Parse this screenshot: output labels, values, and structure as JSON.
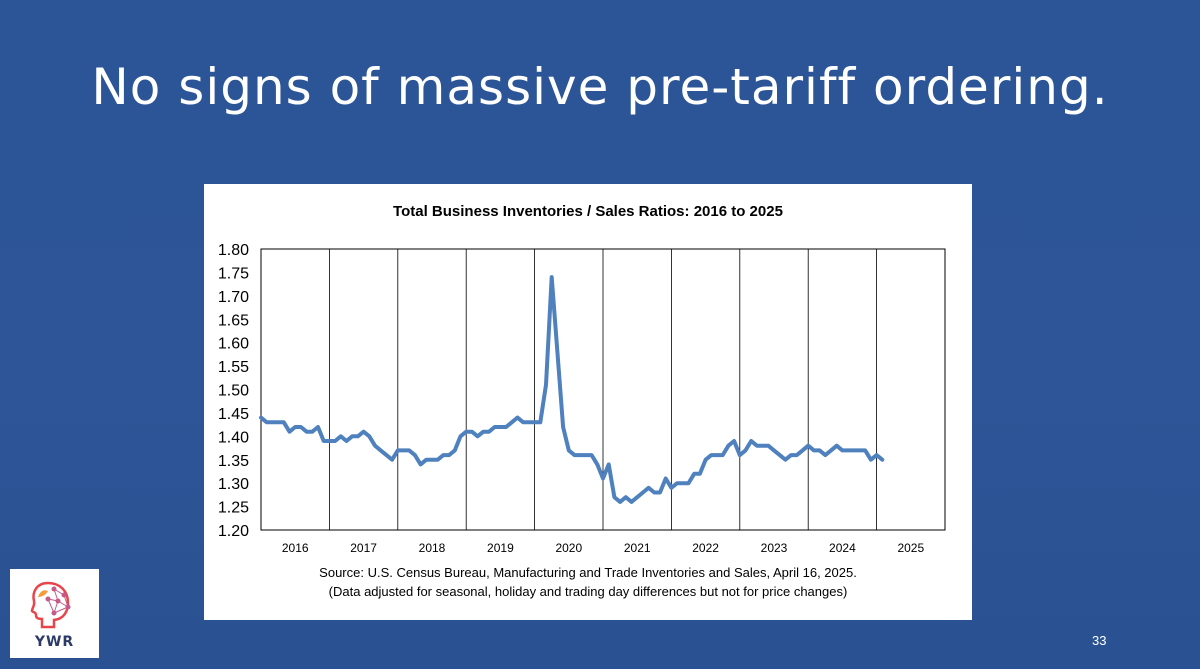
{
  "slide": {
    "title": "No signs of massive pre-tariff ordering.",
    "page_number": "33",
    "logo_text": "YWR"
  },
  "colors": {
    "background": "#2c5597",
    "series_line": "#4e81bd",
    "logo_accent": "#e8454a"
  },
  "chart_data": {
    "type": "line",
    "title": "Total Business Inventories / Sales Ratios: 2016 to 2025",
    "source_line1": "Source: U.S. Census Bureau, Manufacturing and Trade Inventories and Sales, April 16, 2025.",
    "source_line2": "(Data adjusted for seasonal, holiday and trading day differences but not for price changes)",
    "xlabel": "",
    "ylabel": "",
    "ylim": [
      1.2,
      1.8
    ],
    "y_ticks": [
      "1.80",
      "1.75",
      "1.70",
      "1.65",
      "1.60",
      "1.55",
      "1.50",
      "1.45",
      "1.40",
      "1.35",
      "1.30",
      "1.25",
      "1.20"
    ],
    "x_tick_labels": [
      "2016",
      "2017",
      "2018",
      "2019",
      "2020",
      "2021",
      "2022",
      "2023",
      "2024",
      "2025"
    ],
    "gridlines": "vertical year separators",
    "legend": "none",
    "series": [
      {
        "start": "2016-01",
        "frequency": "monthly",
        "values": [
          1.44,
          1.43,
          1.43,
          1.43,
          1.43,
          1.41,
          1.42,
          1.42,
          1.41,
          1.41,
          1.42,
          1.39,
          1.39,
          1.39,
          1.4,
          1.39,
          1.4,
          1.4,
          1.41,
          1.4,
          1.38,
          1.37,
          1.36,
          1.35,
          1.37,
          1.37,
          1.37,
          1.36,
          1.34,
          1.35,
          1.35,
          1.35,
          1.36,
          1.36,
          1.37,
          1.4,
          1.41,
          1.41,
          1.4,
          1.41,
          1.41,
          1.42,
          1.42,
          1.42,
          1.43,
          1.44,
          1.43,
          1.43,
          1.43,
          1.43,
          1.51,
          1.74,
          1.58,
          1.42,
          1.37,
          1.36,
          1.36,
          1.36,
          1.36,
          1.34,
          1.31,
          1.34,
          1.27,
          1.26,
          1.27,
          1.26,
          1.27,
          1.28,
          1.29,
          1.28,
          1.28,
          1.31,
          1.29,
          1.3,
          1.3,
          1.3,
          1.32,
          1.32,
          1.35,
          1.36,
          1.36,
          1.36,
          1.38,
          1.39,
          1.36,
          1.37,
          1.39,
          1.38,
          1.38,
          1.38,
          1.37,
          1.36,
          1.35,
          1.36,
          1.36,
          1.37,
          1.38,
          1.37,
          1.37,
          1.36,
          1.37,
          1.38,
          1.37,
          1.37,
          1.37,
          1.37,
          1.37,
          1.35,
          1.36,
          1.35
        ]
      }
    ]
  }
}
